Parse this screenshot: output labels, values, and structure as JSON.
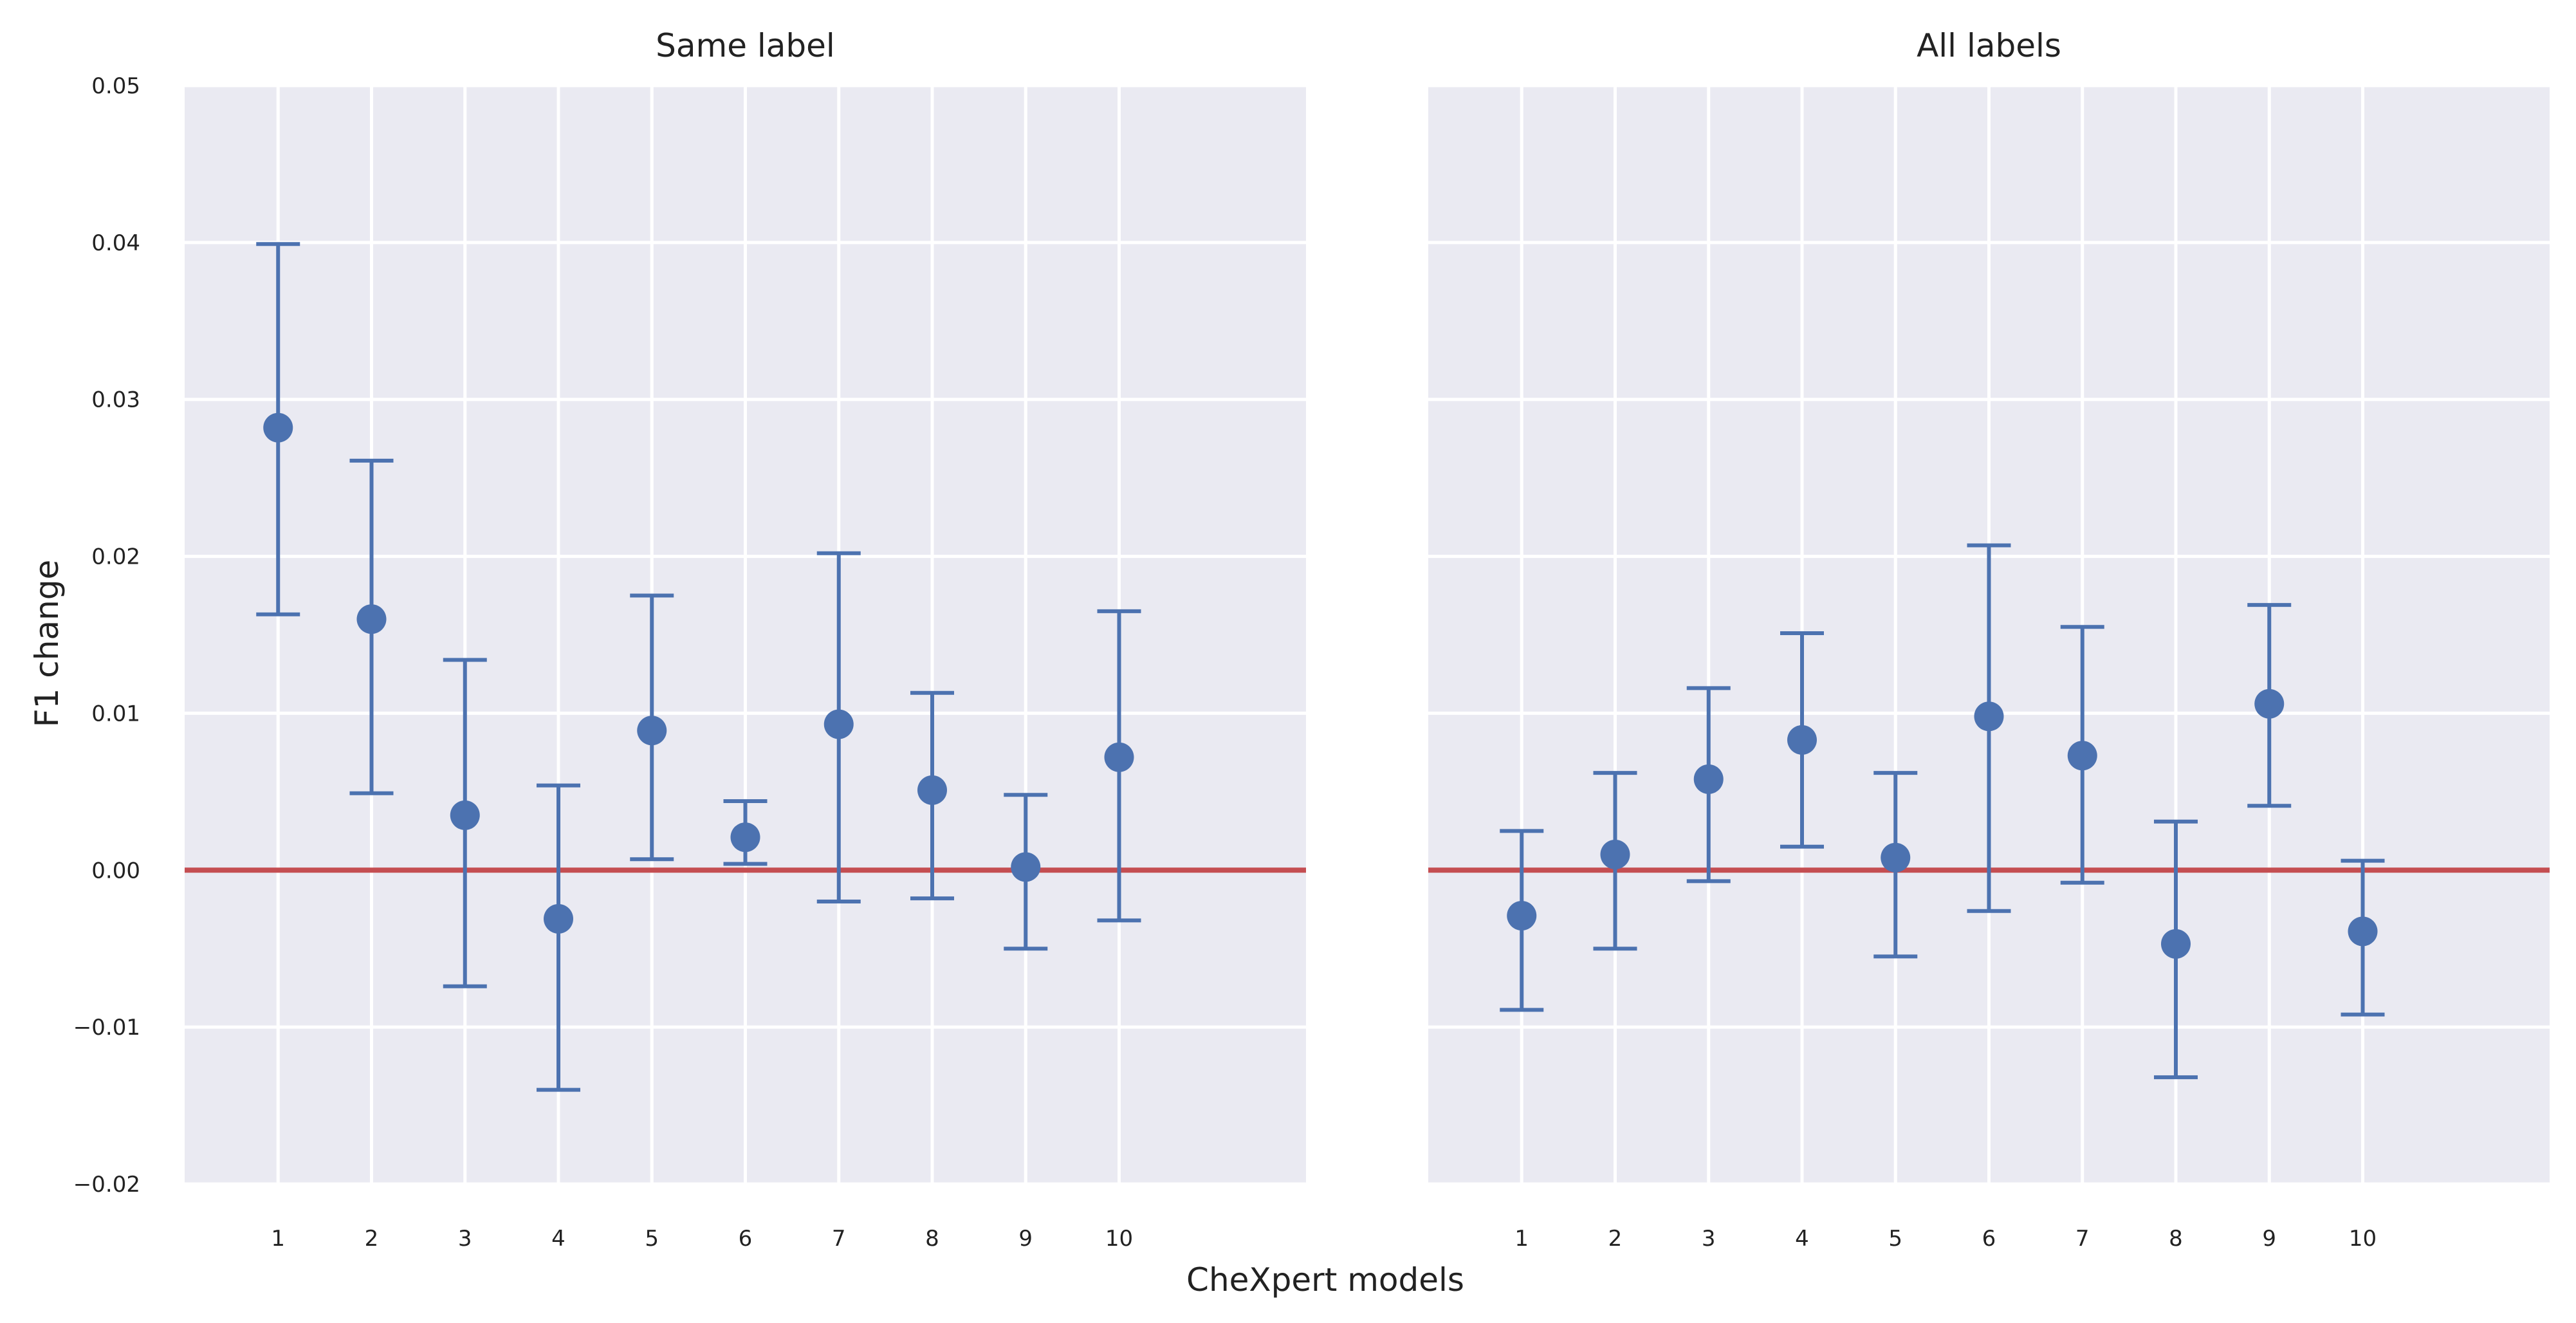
{
  "chart_data": {
    "type": "errorbar",
    "xlabel": "CheXpert models",
    "ylabel": "F1 change",
    "ylim": [
      -0.02,
      0.05
    ],
    "xlim": [
      0,
      12
    ],
    "reference_line": {
      "y": 0.0,
      "color": "#c44e52"
    },
    "point_color": "#4c72b0",
    "yticks": [
      -0.02,
      -0.01,
      0.0,
      0.01,
      0.02,
      0.03,
      0.04,
      0.05
    ],
    "ytick_labels": [
      "−0.02",
      "−0.01",
      "0.00",
      "0.01",
      "0.02",
      "0.03",
      "0.04",
      "0.05"
    ],
    "xticks": [
      1,
      2,
      3,
      4,
      5,
      6,
      7,
      8,
      9,
      10
    ],
    "xtick_labels": [
      "1",
      "2",
      "3",
      "4",
      "5",
      "6",
      "7",
      "8",
      "9",
      "10"
    ],
    "panels": [
      {
        "title": "Same label",
        "x": [
          1,
          2,
          3,
          4,
          5,
          6,
          7,
          8,
          9,
          10
        ],
        "y": [
          0.0282,
          0.016,
          0.0035,
          -0.0031,
          0.0089,
          0.0021,
          0.0093,
          0.0051,
          0.0002,
          0.0072
        ],
        "lower": [
          0.0163,
          0.0049,
          -0.0074,
          -0.014,
          0.0007,
          0.0004,
          -0.002,
          -0.0018,
          -0.005,
          -0.0032
        ],
        "upper": [
          0.0399,
          0.0261,
          0.0134,
          0.0054,
          0.0175,
          0.0044,
          0.0202,
          0.0113,
          0.0048,
          0.0165
        ]
      },
      {
        "title": "All labels",
        "x": [
          1,
          2,
          3,
          4,
          5,
          6,
          7,
          8,
          9,
          10
        ],
        "y": [
          -0.0029,
          0.001,
          0.0058,
          0.0083,
          0.0008,
          0.0098,
          0.0073,
          -0.0047,
          0.0106,
          -0.0039
        ],
        "lower": [
          -0.0089,
          -0.005,
          -0.0007,
          0.0015,
          -0.0055,
          -0.0026,
          -0.0008,
          -0.0132,
          0.0041,
          -0.0092
        ],
        "upper": [
          0.0025,
          0.0062,
          0.0116,
          0.0151,
          0.0062,
          0.0207,
          0.0155,
          0.0031,
          0.0169,
          0.0006
        ]
      }
    ]
  }
}
